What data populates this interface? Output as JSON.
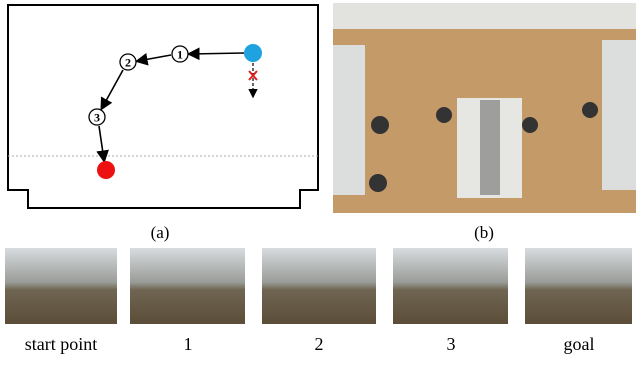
{
  "diagram": {
    "nodes": [
      {
        "label": "1"
      },
      {
        "label": "2"
      },
      {
        "label": "3"
      }
    ],
    "caption": "(a)"
  },
  "map_photo": {
    "caption": "(b)"
  },
  "views": [
    {
      "caption": "start point"
    },
    {
      "caption": "1"
    },
    {
      "caption": "2"
    },
    {
      "caption": "3"
    },
    {
      "caption": "goal"
    }
  ]
}
